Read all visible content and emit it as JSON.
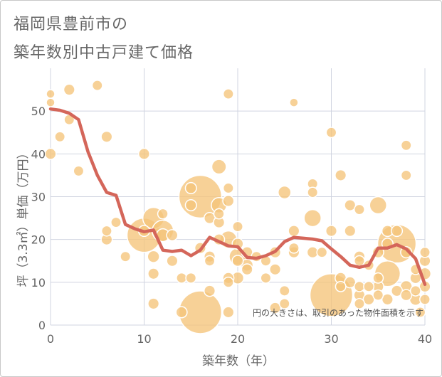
{
  "title_line1": "福岡県豊前市の",
  "title_line2": "築年数別中古戸建て価格",
  "colors": {
    "bubble_fill": "#f5c47a",
    "bubble_stroke": "#ffffff",
    "line": "#d4665a",
    "grid": "#d0d4e0",
    "text": "#666666"
  },
  "chart_data": {
    "type": "scatter",
    "xlabel": "築年数（年）",
    "ylabel": "坪（3.3㎡）単価（万円）",
    "xlim": [
      0,
      40
    ],
    "ylim": [
      0,
      60
    ],
    "xticks": [
      0,
      10,
      20,
      30,
      40
    ],
    "yticks": [
      0,
      10,
      20,
      30,
      40,
      50
    ],
    "grid": true,
    "annotation": "円の大きさは、取引のあった物件面積を示す",
    "bubbles": [
      {
        "x": 0,
        "y": 54,
        "r": 1
      },
      {
        "x": 0,
        "y": 52,
        "r": 1
      },
      {
        "x": 0,
        "y": 40,
        "r": 1.3
      },
      {
        "x": 1,
        "y": 44,
        "r": 1.2
      },
      {
        "x": 2,
        "y": 55,
        "r": 1.3
      },
      {
        "x": 2,
        "y": 48,
        "r": 1.2
      },
      {
        "x": 3,
        "y": 36,
        "r": 1.2
      },
      {
        "x": 5,
        "y": 56,
        "r": 1.2
      },
      {
        "x": 6,
        "y": 44,
        "r": 1.3
      },
      {
        "x": 6,
        "y": 22,
        "r": 1.2
      },
      {
        "x": 6,
        "y": 20,
        "r": 1.3
      },
      {
        "x": 7,
        "y": 24,
        "r": 1.2
      },
      {
        "x": 8,
        "y": 16,
        "r": 1.2
      },
      {
        "x": 10,
        "y": 40,
        "r": 1.3
      },
      {
        "x": 10,
        "y": 22,
        "r": 1.3
      },
      {
        "x": 10,
        "y": 21,
        "r": 4
      },
      {
        "x": 11,
        "y": 25,
        "r": 2.5
      },
      {
        "x": 11,
        "y": 16,
        "r": 1.4
      },
      {
        "x": 11,
        "y": 12,
        "r": 1.3
      },
      {
        "x": 11,
        "y": 5,
        "r": 1.3
      },
      {
        "x": 12,
        "y": 26,
        "r": 1.2
      },
      {
        "x": 12,
        "y": 22,
        "r": 2.5
      },
      {
        "x": 12,
        "y": 21,
        "r": 1.5
      },
      {
        "x": 13,
        "y": 21,
        "r": 1.3
      },
      {
        "x": 13,
        "y": 15,
        "r": 1.3
      },
      {
        "x": 14,
        "y": 3,
        "r": 1.3
      },
      {
        "x": 14,
        "y": 11,
        "r": 1.2
      },
      {
        "x": 15,
        "y": 32,
        "r": 1.3
      },
      {
        "x": 15,
        "y": 28,
        "r": 1.3
      },
      {
        "x": 15,
        "y": 11,
        "r": 1.2
      },
      {
        "x": 16,
        "y": 30,
        "r": 5
      },
      {
        "x": 16,
        "y": 3,
        "r": 5
      },
      {
        "x": 16,
        "y": 18,
        "r": 1.3
      },
      {
        "x": 17,
        "y": 25,
        "r": 1.3
      },
      {
        "x": 17,
        "y": 16,
        "r": 1.3
      },
      {
        "x": 17,
        "y": 15,
        "r": 1.2
      },
      {
        "x": 17,
        "y": 8,
        "r": 1.3
      },
      {
        "x": 18,
        "y": 37,
        "r": 1.7
      },
      {
        "x": 18,
        "y": 28,
        "r": 1.8
      },
      {
        "x": 18,
        "y": 26,
        "r": 1.2
      },
      {
        "x": 18,
        "y": 24,
        "r": 1.3
      },
      {
        "x": 18,
        "y": 20,
        "r": 1.3
      },
      {
        "x": 19,
        "y": 54,
        "r": 1.2
      },
      {
        "x": 19,
        "y": 32,
        "r": 1.2
      },
      {
        "x": 19,
        "y": 29,
        "r": 1.3
      },
      {
        "x": 19,
        "y": 20,
        "r": 2
      },
      {
        "x": 19,
        "y": 11,
        "r": 1.3
      },
      {
        "x": 19,
        "y": 10,
        "r": 1.2
      },
      {
        "x": 19,
        "y": 3,
        "r": 1.3
      },
      {
        "x": 20,
        "y": 23,
        "r": 1.2
      },
      {
        "x": 20,
        "y": 19,
        "r": 1.3
      },
      {
        "x": 20,
        "y": 16,
        "r": 2
      },
      {
        "x": 20,
        "y": 15,
        "r": 1.3
      },
      {
        "x": 20,
        "y": 11,
        "r": 1.4
      },
      {
        "x": 21,
        "y": 17,
        "r": 1.3
      },
      {
        "x": 21,
        "y": 14,
        "r": 1.4
      },
      {
        "x": 21,
        "y": 13,
        "r": 1.3
      },
      {
        "x": 22,
        "y": 16,
        "r": 1.2
      },
      {
        "x": 23,
        "y": 15,
        "r": 1.2
      },
      {
        "x": 23,
        "y": 11,
        "r": 1.2
      },
      {
        "x": 24,
        "y": 17,
        "r": 1.3
      },
      {
        "x": 24,
        "y": 13,
        "r": 1.3
      },
      {
        "x": 24,
        "y": 4,
        "r": 1.3
      },
      {
        "x": 25,
        "y": 31,
        "r": 1.5
      },
      {
        "x": 25,
        "y": 8,
        "r": 1.2
      },
      {
        "x": 25,
        "y": 5,
        "r": 1.2
      },
      {
        "x": 26,
        "y": 52,
        "r": 1
      },
      {
        "x": 26,
        "y": 22,
        "r": 1.3
      },
      {
        "x": 26,
        "y": 18,
        "r": 1.2
      },
      {
        "x": 26,
        "y": 17,
        "r": 1.3
      },
      {
        "x": 28,
        "y": 33,
        "r": 1.2
      },
      {
        "x": 28,
        "y": 31,
        "r": 1.2
      },
      {
        "x": 28,
        "y": 25,
        "r": 2
      },
      {
        "x": 28,
        "y": 17,
        "r": 1.3
      },
      {
        "x": 29,
        "y": 17,
        "r": 1.2
      },
      {
        "x": 30,
        "y": 45,
        "r": 1.2
      },
      {
        "x": 30,
        "y": 22,
        "r": 1.3
      },
      {
        "x": 30,
        "y": 7,
        "r": 5
      },
      {
        "x": 31,
        "y": 35,
        "r": 1.3
      },
      {
        "x": 31,
        "y": 11,
        "r": 1.3
      },
      {
        "x": 31,
        "y": 9,
        "r": 1.2
      },
      {
        "x": 32,
        "y": 28,
        "r": 1.3
      },
      {
        "x": 32,
        "y": 22,
        "r": 1.3
      },
      {
        "x": 32,
        "y": 10,
        "r": 1.3
      },
      {
        "x": 33,
        "y": 27,
        "r": 1.2
      },
      {
        "x": 33,
        "y": 16,
        "r": 1.3
      },
      {
        "x": 33,
        "y": 15,
        "r": 1.2
      },
      {
        "x": 33,
        "y": 9,
        "r": 1.2
      },
      {
        "x": 33,
        "y": 7,
        "r": 1.3
      },
      {
        "x": 33,
        "y": 5,
        "r": 1.2
      },
      {
        "x": 34,
        "y": 14,
        "r": 1.2
      },
      {
        "x": 34,
        "y": 9,
        "r": 1.2
      },
      {
        "x": 34,
        "y": 6,
        "r": 1.3
      },
      {
        "x": 35,
        "y": 28,
        "r": 2
      },
      {
        "x": 35,
        "y": 17,
        "r": 1.3
      },
      {
        "x": 35,
        "y": 11,
        "r": 1.2
      },
      {
        "x": 35,
        "y": 9,
        "r": 1.3
      },
      {
        "x": 35,
        "y": 7,
        "r": 1.2
      },
      {
        "x": 36,
        "y": 22,
        "r": 1.3
      },
      {
        "x": 36,
        "y": 19,
        "r": 1.3
      },
      {
        "x": 36,
        "y": 12,
        "r": 3
      },
      {
        "x": 36,
        "y": 6,
        "r": 1.3
      },
      {
        "x": 37,
        "y": 19,
        "r": 4.5
      },
      {
        "x": 37,
        "y": 22,
        "r": 1.3
      },
      {
        "x": 37,
        "y": 8,
        "r": 1.3
      },
      {
        "x": 38,
        "y": 42,
        "r": 1.2
      },
      {
        "x": 38,
        "y": 35,
        "r": 1.2
      },
      {
        "x": 38,
        "y": 17,
        "r": 1.3
      },
      {
        "x": 38,
        "y": 9,
        "r": 1.4
      },
      {
        "x": 38,
        "y": 7,
        "r": 1.3
      },
      {
        "x": 39,
        "y": 13,
        "r": 1.2
      },
      {
        "x": 39,
        "y": 11,
        "r": 1.3
      },
      {
        "x": 39,
        "y": 8,
        "r": 1.2
      },
      {
        "x": 39,
        "y": 6,
        "r": 1.4
      },
      {
        "x": 40,
        "y": 17,
        "r": 1.2
      },
      {
        "x": 40,
        "y": 15,
        "r": 1.3
      },
      {
        "x": 40,
        "y": 12,
        "r": 1.4
      },
      {
        "x": 40,
        "y": 9,
        "r": 1.3
      },
      {
        "x": 40,
        "y": 6,
        "r": 1.2
      },
      {
        "x": 39.5,
        "y": 3,
        "r": 1.2
      }
    ],
    "trend": {
      "x": [
        0,
        1,
        2,
        3,
        4,
        5,
        6,
        7,
        8,
        9,
        10,
        11,
        12,
        13,
        14,
        15,
        16,
        17,
        18,
        19,
        20,
        21,
        22,
        23,
        24,
        25,
        26,
        27,
        28,
        29,
        30,
        31,
        32,
        33,
        34,
        35,
        36,
        37,
        38,
        39,
        40
      ],
      "y": [
        50.5,
        50.2,
        49.5,
        48,
        40.5,
        35,
        31,
        30.3,
        23.5,
        22.5,
        21.8,
        22.2,
        17.5,
        17.2,
        17.5,
        16.2,
        17.5,
        20.5,
        19.5,
        18.5,
        18.3,
        15.8,
        15.6,
        16.2,
        17.2,
        19.5,
        20.5,
        20.3,
        20.1,
        19.7,
        17.8,
        16,
        14,
        13.5,
        14,
        18,
        18,
        18.8,
        17.8,
        15.5,
        9.5
      ]
    }
  }
}
